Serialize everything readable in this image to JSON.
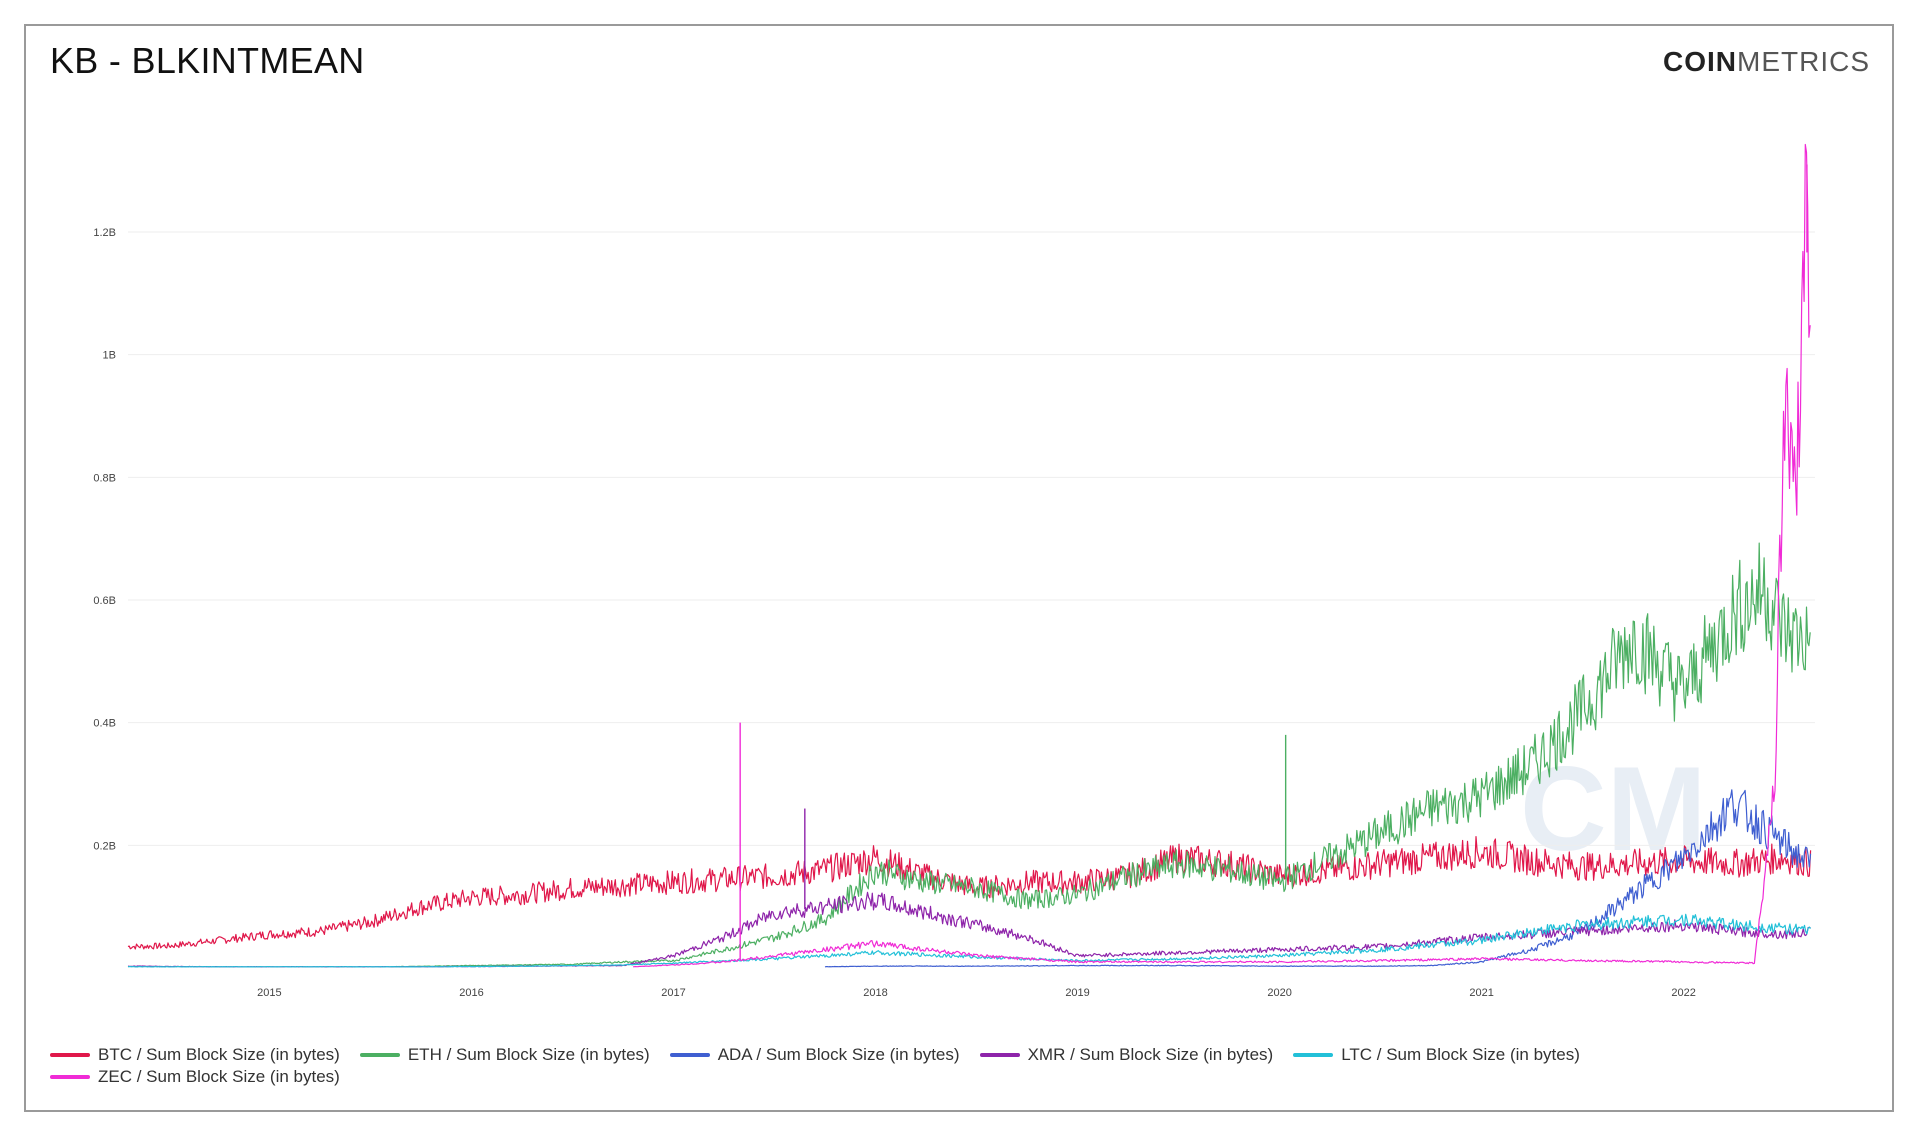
{
  "header": {
    "title": "KB - BLKINTMEAN",
    "logo_bold": "COIN",
    "logo_light": "METRICS"
  },
  "watermark": "CM",
  "chart_data": {
    "type": "line",
    "title": "KB - BLKINTMEAN",
    "xlabel": "",
    "ylabel": "",
    "xlim": [
      2014.3,
      2022.65
    ],
    "ylim": [
      0,
      1.35
    ],
    "x_ticks": [
      2015,
      2016,
      2017,
      2018,
      2019,
      2020,
      2021,
      2022
    ],
    "x_tick_labels": [
      "2015",
      "2016",
      "2017",
      "2018",
      "2019",
      "2020",
      "2021",
      "2022"
    ],
    "y_ticks": [
      0.2,
      0.4,
      0.6,
      0.8,
      1.0,
      1.2
    ],
    "y_tick_labels": [
      "0.2B",
      "0.4B",
      "0.6B",
      "0.8B",
      "1B",
      "1.2B"
    ],
    "grid": true,
    "legend_position": "bottom-left",
    "series": [
      {
        "name": "BTC / Sum Block Size (in bytes)",
        "color": "#e0174a",
        "x": [
          2014.3,
          2014.5,
          2014.75,
          2015.0,
          2015.25,
          2015.5,
          2015.75,
          2016.0,
          2016.25,
          2016.5,
          2016.75,
          2017.0,
          2017.25,
          2017.5,
          2017.75,
          2018.0,
          2018.25,
          2018.5,
          2018.75,
          2019.0,
          2019.25,
          2019.5,
          2019.75,
          2020.0,
          2020.25,
          2020.5,
          2020.75,
          2021.0,
          2021.25,
          2021.5,
          2021.75,
          2022.0,
          2022.25,
          2022.5,
          2022.63
        ],
        "y": [
          0.035,
          0.036,
          0.045,
          0.055,
          0.06,
          0.075,
          0.1,
          0.115,
          0.12,
          0.13,
          0.135,
          0.14,
          0.145,
          0.15,
          0.16,
          0.18,
          0.15,
          0.13,
          0.14,
          0.14,
          0.15,
          0.18,
          0.17,
          0.15,
          0.16,
          0.17,
          0.18,
          0.19,
          0.175,
          0.165,
          0.17,
          0.175,
          0.17,
          0.18,
          0.17
        ]
      },
      {
        "name": "ETH / Sum Block Size (in bytes)",
        "color": "#4caf62",
        "x": [
          2015.6,
          2016.0,
          2016.5,
          2016.75,
          2017.0,
          2017.25,
          2017.5,
          2017.75,
          2018.0,
          2018.25,
          2018.5,
          2018.75,
          2019.0,
          2019.25,
          2019.5,
          2019.75,
          2020.0,
          2020.25,
          2020.5,
          2020.75,
          2021.0,
          2021.25,
          2021.5,
          2021.75,
          2022.0,
          2022.25,
          2022.4,
          2022.5,
          2022.63
        ],
        "y": [
          0.002,
          0.004,
          0.006,
          0.01,
          0.012,
          0.03,
          0.05,
          0.08,
          0.16,
          0.14,
          0.13,
          0.11,
          0.12,
          0.15,
          0.17,
          0.16,
          0.14,
          0.18,
          0.22,
          0.26,
          0.28,
          0.33,
          0.42,
          0.54,
          0.45,
          0.58,
          0.62,
          0.55,
          0.53
        ]
      },
      {
        "name": "ADA / Sum Block Size (in bytes)",
        "color": "#3f5fd1",
        "x": [
          2017.75,
          2018.0,
          2018.5,
          2019.0,
          2019.5,
          2020.0,
          2020.5,
          2020.75,
          2021.0,
          2021.25,
          2021.5,
          2021.75,
          2022.0,
          2022.25,
          2022.5,
          2022.63
        ],
        "y": [
          0.002,
          0.003,
          0.003,
          0.004,
          0.004,
          0.003,
          0.003,
          0.004,
          0.01,
          0.03,
          0.06,
          0.12,
          0.18,
          0.27,
          0.2,
          0.17
        ]
      },
      {
        "name": "XMR / Sum Block Size (in bytes)",
        "color": "#8e24aa",
        "x": [
          2014.3,
          2014.75,
          2015.25,
          2015.75,
          2016.25,
          2016.75,
          2017.0,
          2017.25,
          2017.5,
          2017.75,
          2018.0,
          2018.25,
          2018.5,
          2018.75,
          2019.0,
          2019.5,
          2020.0,
          2020.5,
          2021.0,
          2021.25,
          2021.5,
          2021.75,
          2022.0,
          2022.25,
          2022.5,
          2022.63
        ],
        "y": [
          0.003,
          0.002,
          0.002,
          0.002,
          0.003,
          0.004,
          0.02,
          0.05,
          0.09,
          0.1,
          0.11,
          0.09,
          0.07,
          0.05,
          0.02,
          0.025,
          0.03,
          0.035,
          0.05,
          0.055,
          0.06,
          0.065,
          0.07,
          0.06,
          0.055,
          0.06
        ]
      },
      {
        "name": "LTC / Sum Block Size (in bytes)",
        "color": "#22c0d8",
        "x": [
          2014.3,
          2014.75,
          2015.25,
          2015.75,
          2016.25,
          2016.75,
          2017.0,
          2017.5,
          2018.0,
          2018.5,
          2019.0,
          2019.5,
          2020.0,
          2020.5,
          2021.0,
          2021.25,
          2021.5,
          2021.75,
          2022.0,
          2022.25,
          2022.5,
          2022.63
        ],
        "y": [
          0.002,
          0.002,
          0.002,
          0.002,
          0.003,
          0.005,
          0.008,
          0.015,
          0.025,
          0.018,
          0.012,
          0.015,
          0.02,
          0.03,
          0.045,
          0.06,
          0.07,
          0.075,
          0.08,
          0.07,
          0.065,
          0.06
        ]
      },
      {
        "name": "ZEC / Sum Block Size (in bytes)",
        "color": "#f02bd6",
        "x": [
          2016.8,
          2017.0,
          2017.25,
          2017.5,
          2017.75,
          2018.0,
          2018.25,
          2018.5,
          2018.75,
          2019.0,
          2019.5,
          2020.0,
          2020.5,
          2021.0,
          2021.5,
          2022.0,
          2022.35,
          2022.45,
          2022.5,
          2022.55,
          2022.6,
          2022.63
        ],
        "y": [
          0.002,
          0.005,
          0.01,
          0.02,
          0.03,
          0.04,
          0.03,
          0.02,
          0.015,
          0.01,
          0.01,
          0.01,
          0.012,
          0.015,
          0.012,
          0.01,
          0.008,
          0.3,
          0.95,
          0.75,
          1.2,
          1.1
        ]
      }
    ],
    "annotations": [
      {
        "series": "ZEC / Sum Block Size (in bytes)",
        "x": 2017.33,
        "y": 0.4
      },
      {
        "series": "XMR / Sum Block Size (in bytes)",
        "x": 2017.65,
        "y": 0.26
      },
      {
        "series": "ETH / Sum Block Size (in bytes)",
        "x": 2020.03,
        "y": 0.38
      },
      {
        "series": "ZEC / Sum Block Size (in bytes)",
        "x": 2022.61,
        "y": 1.31
      }
    ]
  }
}
